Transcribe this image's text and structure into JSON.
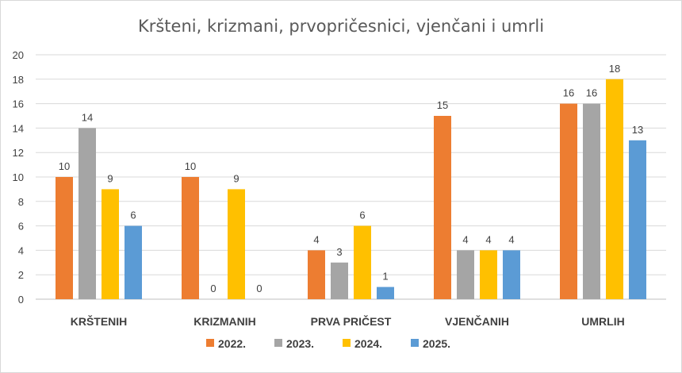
{
  "chart_data": {
    "type": "bar",
    "title": "Kršteni, krizmani, prvopričesnici, vjenčani i umrli",
    "xlabel": "",
    "ylabel": "",
    "categories": [
      "KRŠTENIH",
      "KRIZMANIH",
      "PRVA PRIČEST",
      "VJENČANIH",
      "UMRLIH"
    ],
    "ylim": [
      0,
      20
    ],
    "yticks": [
      0,
      2,
      4,
      6,
      8,
      10,
      12,
      14,
      16,
      18,
      20
    ],
    "grid": true,
    "legend_position": "bottom",
    "series": [
      {
        "name": "2022.",
        "color": "#ED7D31",
        "values": [
          10,
          10,
          4,
          15,
          16
        ]
      },
      {
        "name": "2023.",
        "color": "#A5A5A5",
        "values": [
          14,
          0,
          3,
          4,
          16
        ]
      },
      {
        "name": "2024.",
        "color": "#FFC000",
        "values": [
          9,
          9,
          6,
          4,
          18
        ]
      },
      {
        "name": "2025.",
        "color": "#5B9BD5",
        "values": [
          6,
          0,
          1,
          4,
          13
        ]
      }
    ]
  }
}
